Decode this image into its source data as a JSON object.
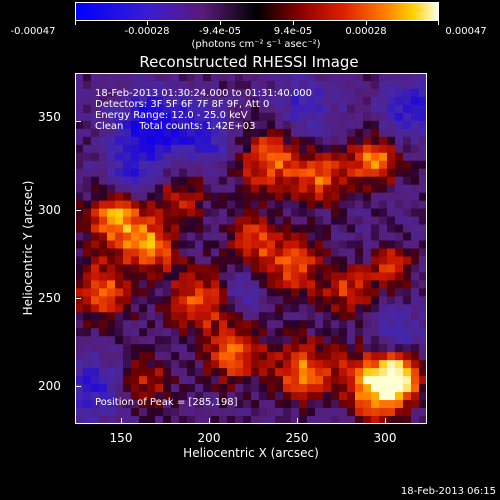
{
  "colorbar": {
    "tick_labels": [
      "-0.00047",
      "-0.00028",
      "-9.4e-05",
      "9.4e-05",
      "0.00028",
      "0.00047"
    ],
    "units": "(photons cm⁻² s⁻¹ asec⁻²)",
    "colors": [
      "#0000ff",
      "#3b00c8",
      "#5a0f7a",
      "#000000",
      "#7a0000",
      "#d01000",
      "#ff6a00",
      "#ffd000",
      "#ffffe0"
    ]
  },
  "plot": {
    "title": "Reconstructed RHESSI Image",
    "xlabel": "Heliocentric X (arcsec)",
    "ylabel": "Heliocentric Y (arcsec)",
    "x_tick_labels": [
      "150",
      "200",
      "250",
      "300"
    ],
    "y_tick_labels": [
      "200",
      "250",
      "300",
      "350"
    ],
    "info_lines": [
      "18-Feb-2013 01:30:24.000 to 01:31:40.000",
      "Detectors: 3F 5F 6F 7F 8F 9F, Att 0",
      "Energy Range: 12.0 - 25.0 keV",
      "Clean     Total counts: 1.42E+03"
    ],
    "peak_text": "Position of Peak = [285,198]"
  },
  "footer": {
    "date": "18-Feb-2013 06:15"
  },
  "chart_data": {
    "type": "heatmap",
    "title": "Reconstructed RHESSI Image",
    "xlabel": "Heliocentric X (arcsec)",
    "ylabel": "Heliocentric Y (arcsec)",
    "xlim": [
      125,
      325
    ],
    "ylim": [
      180,
      379
    ],
    "colorbar_range": [
      -0.00047,
      0.00047
    ],
    "peak_position": [
      285,
      198
    ]
  }
}
